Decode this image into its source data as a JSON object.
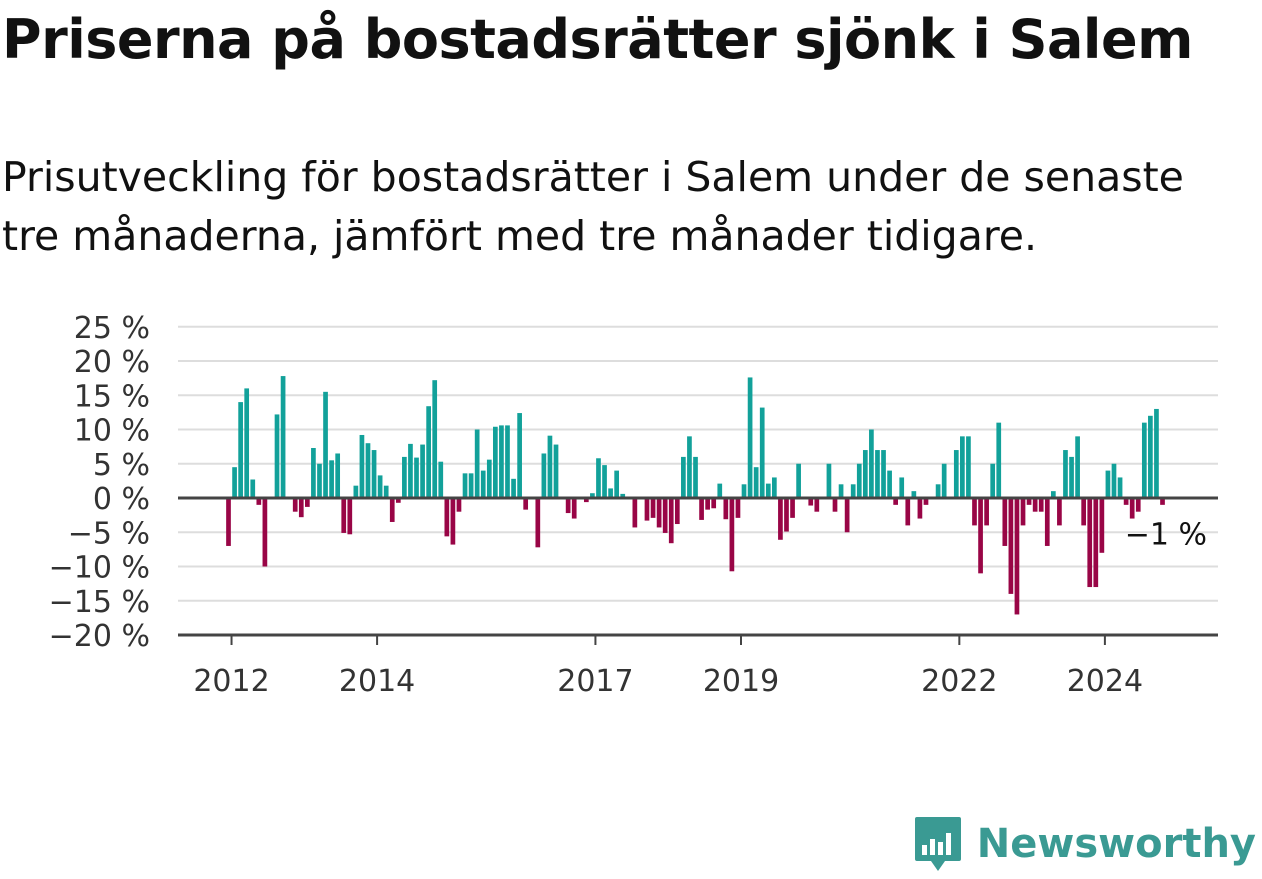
{
  "header": {
    "title": "Priserna på bostadsrätter sjönk i Salem",
    "subtitle": "Prisutveckling för bostadsrätter i Salem under de senaste tre månaderna, jämfört med tre månader tidigare."
  },
  "brand": {
    "name": "Newsworthy",
    "color": "#3a9a93"
  },
  "colors": {
    "positive": "#12a19a",
    "negative": "#990546",
    "grid": "#dddddd",
    "axis": "#444444"
  },
  "chart_data": {
    "type": "bar",
    "start": "2011-12",
    "unit": "%",
    "ylim": [
      -20,
      25
    ],
    "yticks": [
      25,
      20,
      15,
      10,
      5,
      0,
      -5,
      -10,
      -15,
      -20
    ],
    "ytick_labels": [
      "25 %",
      "20 %",
      "15 %",
      "10 %",
      "5 %",
      "0 %",
      "−5 %",
      "−10 %",
      "−15 %",
      "−20 %"
    ],
    "xticks": [
      "2012",
      "2014",
      "2017",
      "2019",
      "2022",
      "2024"
    ],
    "end_label": "−1 %",
    "values": [
      -7,
      4.5,
      14,
      16,
      2.7,
      -1,
      -10,
      0,
      12.2,
      17.8,
      0,
      -2,
      -2.8,
      -1.3,
      7.3,
      5,
      15.5,
      5.5,
      6.5,
      -5.1,
      -5.3,
      1.8,
      9.2,
      8,
      7,
      3.3,
      1.8,
      -3.5,
      -0.7,
      6,
      7.9,
      5.9,
      7.8,
      13.4,
      17.2,
      5.3,
      -5.6,
      -6.8,
      -2,
      3.6,
      3.6,
      10,
      4,
      5.6,
      10.4,
      10.6,
      10.6,
      2.8,
      12.4,
      -1.7,
      0,
      -7.2,
      6.5,
      9.1,
      7.8,
      0,
      -2.2,
      -3,
      0,
      -0.6,
      0.7,
      5.8,
      4.8,
      1.4,
      4,
      0.6,
      0,
      -4.3,
      0,
      -3.3,
      -2.9,
      -4.3,
      -5.1,
      -6.6,
      -3.8,
      6,
      9,
      6,
      -3.2,
      -1.7,
      -1.5,
      2.1,
      -3.1,
      -10.7,
      -2.9,
      2,
      17.6,
      4.5,
      13.2,
      2.1,
      3,
      -6.1,
      -4.9,
      -2.9,
      5,
      0,
      -1.1,
      -2,
      0,
      5,
      -2,
      2,
      -5,
      2,
      5,
      7,
      10,
      7,
      7,
      4,
      -1,
      3,
      -4,
      1,
      -3,
      -1,
      0,
      2,
      5,
      0,
      7,
      9,
      9,
      -4,
      -11,
      -4,
      5,
      11,
      -7,
      -14,
      -17,
      -4,
      -1,
      -2,
      -2,
      -7,
      1,
      -4,
      7,
      6,
      9,
      -4,
      -13,
      -13,
      -8,
      4,
      5,
      3,
      -1,
      -3,
      -2,
      11,
      12,
      13,
      -1
    ]
  }
}
